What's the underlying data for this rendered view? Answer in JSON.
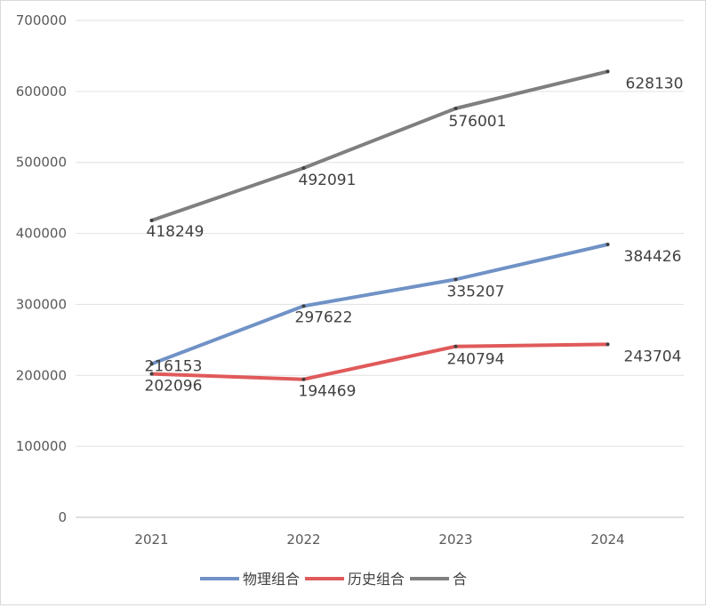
{
  "chart_data": {
    "type": "line",
    "categories": [
      "2021",
      "2022",
      "2023",
      "2024"
    ],
    "series": [
      {
        "name": "物理组合",
        "values": [
          216153,
          297622,
          335207,
          384426
        ],
        "color": "#7092c6"
      },
      {
        "name": "历史组合",
        "values": [
          202096,
          194469,
          240794,
          243704
        ],
        "color": "#e05a5a"
      },
      {
        "name": "合",
        "values": [
          418249,
          492091,
          576001,
          628130
        ],
        "color": "#7f7f7f"
      }
    ],
    "ylim": [
      0,
      700000
    ],
    "yticks": [
      "0",
      "100000",
      "200000",
      "300000",
      "400000",
      "500000",
      "600000",
      "700000"
    ],
    "title": "",
    "xlabel": "",
    "ylabel": "",
    "grid": true,
    "legend": "bottom"
  }
}
